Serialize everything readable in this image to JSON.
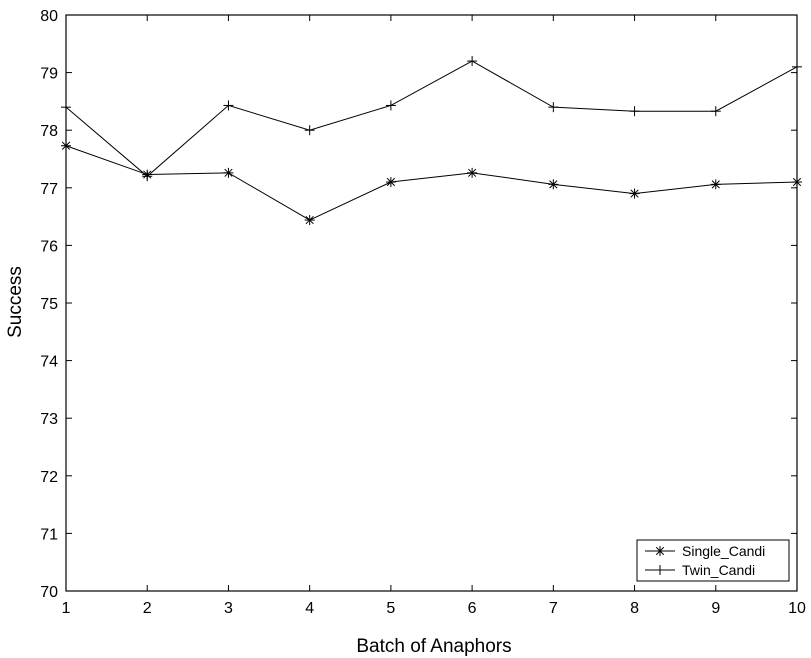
{
  "chart_data": {
    "type": "line",
    "title": "",
    "xlabel": "Batch of Anaphors",
    "ylabel": "Success",
    "x": [
      1,
      2,
      3,
      4,
      5,
      6,
      7,
      8,
      9,
      10
    ],
    "xlim": [
      1,
      10
    ],
    "ylim": [
      70,
      80
    ],
    "xticks": [
      1,
      2,
      3,
      4,
      5,
      6,
      7,
      8,
      9,
      10
    ],
    "yticks": [
      70,
      71,
      72,
      73,
      74,
      75,
      76,
      77,
      78,
      79,
      80
    ],
    "grid": false,
    "legend_position": "bottom-right",
    "line_color": "#000000",
    "series": [
      {
        "name": "Single_Candi",
        "marker": "asterisk",
        "values": [
          77.73,
          77.23,
          77.26,
          76.44,
          77.1,
          77.26,
          77.06,
          76.9,
          77.06,
          77.1
        ]
      },
      {
        "name": "Twin_Candi",
        "marker": "plus",
        "values": [
          78.4,
          77.2,
          78.43,
          78.0,
          78.43,
          79.2,
          78.4,
          78.33,
          78.33,
          79.1
        ]
      }
    ]
  }
}
